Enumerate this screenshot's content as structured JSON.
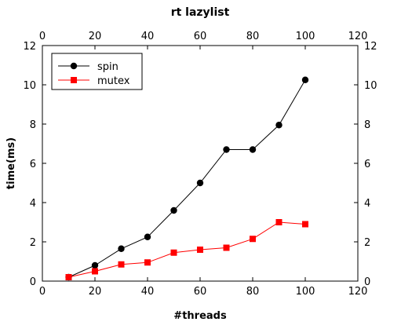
{
  "chart_data": {
    "type": "line",
    "title": "rt lazylist",
    "xlabel": "#threads",
    "ylabel": "time(ms)",
    "xlim": [
      0,
      120
    ],
    "ylim": [
      0,
      12
    ],
    "xticks": [
      0,
      20,
      40,
      60,
      80,
      100,
      120
    ],
    "yticks": [
      0,
      2,
      4,
      6,
      8,
      10,
      12
    ],
    "grid": false,
    "legend_position": "top-left",
    "series": [
      {
        "name": "spin",
        "color": "#000000",
        "marker": "circle",
        "x": [
          10,
          20,
          30,
          40,
          50,
          60,
          70,
          80,
          90,
          100
        ],
        "y": [
          0.2,
          0.8,
          1.65,
          2.25,
          3.6,
          5.0,
          6.7,
          6.7,
          7.95,
          10.25
        ]
      },
      {
        "name": "mutex",
        "color": "#ff0000",
        "marker": "square",
        "x": [
          10,
          20,
          30,
          40,
          50,
          60,
          70,
          80,
          90,
          100
        ],
        "y": [
          0.2,
          0.5,
          0.85,
          0.95,
          1.45,
          1.6,
          1.7,
          2.15,
          3.0,
          2.9
        ]
      }
    ]
  }
}
